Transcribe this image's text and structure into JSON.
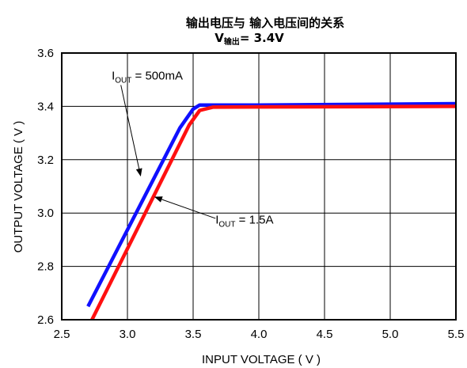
{
  "chart_data": {
    "type": "line",
    "title": "输出电压与 输入电压间的关系",
    "subtitle": {
      "prefix": "V",
      "subscript": "输出",
      "suffix": "= 3.4V"
    },
    "xlabel": "INPUT VOLTAGE ( V )",
    "ylabel": "OUTPUT VOLTAGE ( V )",
    "xlim": [
      2.5,
      5.5
    ],
    "ylim": [
      2.6,
      3.6
    ],
    "xticks": [
      "2.5",
      "3.0",
      "3.5",
      "4.0",
      "4.5",
      "5.0",
      "5.5"
    ],
    "yticks": [
      "2.6",
      "2.8",
      "3.0",
      "3.2",
      "3.4",
      "3.6"
    ],
    "grid": true,
    "series": [
      {
        "name": "500mA",
        "color": "#1010ff",
        "x": [
          2.7,
          3.4,
          3.5,
          3.55,
          4.0,
          5.5
        ],
        "y": [
          2.65,
          3.32,
          3.39,
          3.405,
          3.405,
          3.41
        ]
      },
      {
        "name": "1.5A",
        "color": "#ff1010",
        "x": [
          2.73,
          3.47,
          3.55,
          3.65,
          4.0,
          5.5
        ],
        "y": [
          2.6,
          3.33,
          3.385,
          3.397,
          3.398,
          3.4
        ]
      }
    ],
    "annotations": [
      {
        "label": {
          "base": "I",
          "sub": "OUT",
          "text": " = 500mA"
        },
        "arrow_from": [
          2.95,
          3.48
        ],
        "arrow_to": [
          3.1,
          3.14
        ]
      },
      {
        "label": {
          "base": "I",
          "sub": "OUT",
          "text": " = 1.5A"
        },
        "arrow_from": [
          3.67,
          2.98
        ],
        "arrow_to": [
          3.21,
          3.06
        ]
      }
    ]
  }
}
